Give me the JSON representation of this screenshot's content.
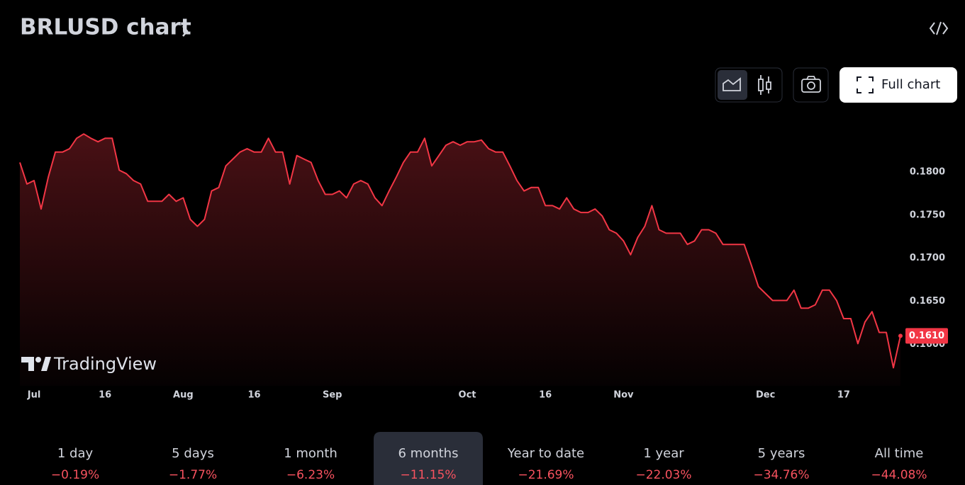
{
  "header": {
    "title": "BRLUSD chart"
  },
  "toolbar": {
    "full_chart": "Full chart"
  },
  "watermark": "TradingView",
  "chart_data": {
    "type": "area",
    "color": "#f23645",
    "grid": false,
    "categories": [
      null,
      null,
      "Jul",
      null,
      null,
      null,
      null,
      null,
      null,
      null,
      null,
      null,
      "16",
      null,
      null,
      null,
      null,
      null,
      null,
      null,
      null,
      null,
      null,
      "Aug",
      null,
      null,
      null,
      null,
      null,
      null,
      null,
      null,
      null,
      "16",
      null,
      null,
      null,
      null,
      null,
      null,
      null,
      null,
      null,
      null,
      "Sep",
      null,
      null,
      null,
      null,
      null,
      null,
      null,
      null,
      null,
      null,
      null,
      null,
      null,
      null,
      null,
      null,
      null,
      null,
      "Oct",
      null,
      null,
      null,
      null,
      null,
      null,
      null,
      null,
      null,
      null,
      "16",
      null,
      null,
      null,
      null,
      null,
      null,
      null,
      null,
      null,
      null,
      "Nov",
      null,
      null,
      null,
      null,
      null,
      null,
      null,
      null,
      null,
      null,
      null,
      null,
      null,
      null,
      null,
      null,
      null,
      null,
      null,
      "Dec",
      null,
      null,
      null,
      null,
      null,
      null,
      null,
      null,
      null,
      null,
      "17",
      null,
      null,
      null,
      null,
      null,
      null,
      null,
      null
    ],
    "values": [
      0.1811,
      0.1786,
      0.179,
      0.1757,
      0.1794,
      0.1823,
      0.1823,
      0.1827,
      0.1839,
      0.1844,
      0.1839,
      0.1835,
      0.1839,
      0.1839,
      0.1802,
      0.1798,
      0.179,
      0.1786,
      0.1766,
      0.1766,
      0.1766,
      0.1774,
      0.1766,
      0.177,
      0.1745,
      0.1737,
      0.1745,
      0.1778,
      0.1782,
      0.1807,
      0.1815,
      0.1823,
      0.1827,
      0.1823,
      0.1823,
      0.1839,
      0.1823,
      0.1823,
      0.1786,
      0.1819,
      0.1815,
      0.1811,
      0.179,
      0.1774,
      0.1774,
      0.1778,
      0.177,
      0.1786,
      0.179,
      0.1786,
      0.177,
      0.1761,
      0.1778,
      0.1794,
      0.1811,
      0.1823,
      0.1823,
      0.1839,
      0.1807,
      0.1819,
      0.1831,
      0.1835,
      0.1831,
      0.1835,
      0.1835,
      0.1837,
      0.1827,
      0.1823,
      0.1823,
      0.1807,
      0.179,
      0.1778,
      0.1782,
      0.1782,
      0.1761,
      0.1761,
      0.1757,
      0.177,
      0.1757,
      0.1753,
      0.1753,
      0.1757,
      0.1749,
      0.1733,
      0.1729,
      0.172,
      0.1704,
      0.1724,
      0.1737,
      0.1761,
      0.1733,
      0.1729,
      0.1729,
      0.1729,
      0.1716,
      0.172,
      0.1733,
      0.1733,
      0.1729,
      0.1716,
      0.1716,
      0.1716,
      0.1716,
      0.1692,
      0.1667,
      0.1659,
      0.1651,
      0.1651,
      0.1651,
      0.1663,
      0.1642,
      0.1642,
      0.1646,
      0.1663,
      0.1663,
      0.1651,
      0.163,
      0.163,
      0.1601,
      0.1626,
      0.1638,
      0.1614,
      0.1614,
      0.1573,
      0.161
    ],
    "ylim": [
      0.1552,
      0.1868
    ],
    "yticks": [
      {
        "value": 0.16,
        "label": "0.1600"
      },
      {
        "value": 0.165,
        "label": "0.1650"
      },
      {
        "value": 0.17,
        "label": "0.1700"
      },
      {
        "value": 0.175,
        "label": "0.1750"
      },
      {
        "value": 0.18,
        "label": "0.1800"
      }
    ],
    "last_price": {
      "value": 0.161,
      "label": "0.1610"
    }
  },
  "periods": [
    {
      "label": "1 day",
      "change": "−0.19%"
    },
    {
      "label": "5 days",
      "change": "−1.77%"
    },
    {
      "label": "1 month",
      "change": "−6.23%"
    },
    {
      "label": "6 months",
      "change": "−11.15%",
      "selected": true
    },
    {
      "label": "Year to date",
      "change": "−21.69%"
    },
    {
      "label": "1 year",
      "change": "−22.03%"
    },
    {
      "label": "5 years",
      "change": "−34.76%"
    },
    {
      "label": "All time",
      "change": "−44.08%"
    }
  ]
}
